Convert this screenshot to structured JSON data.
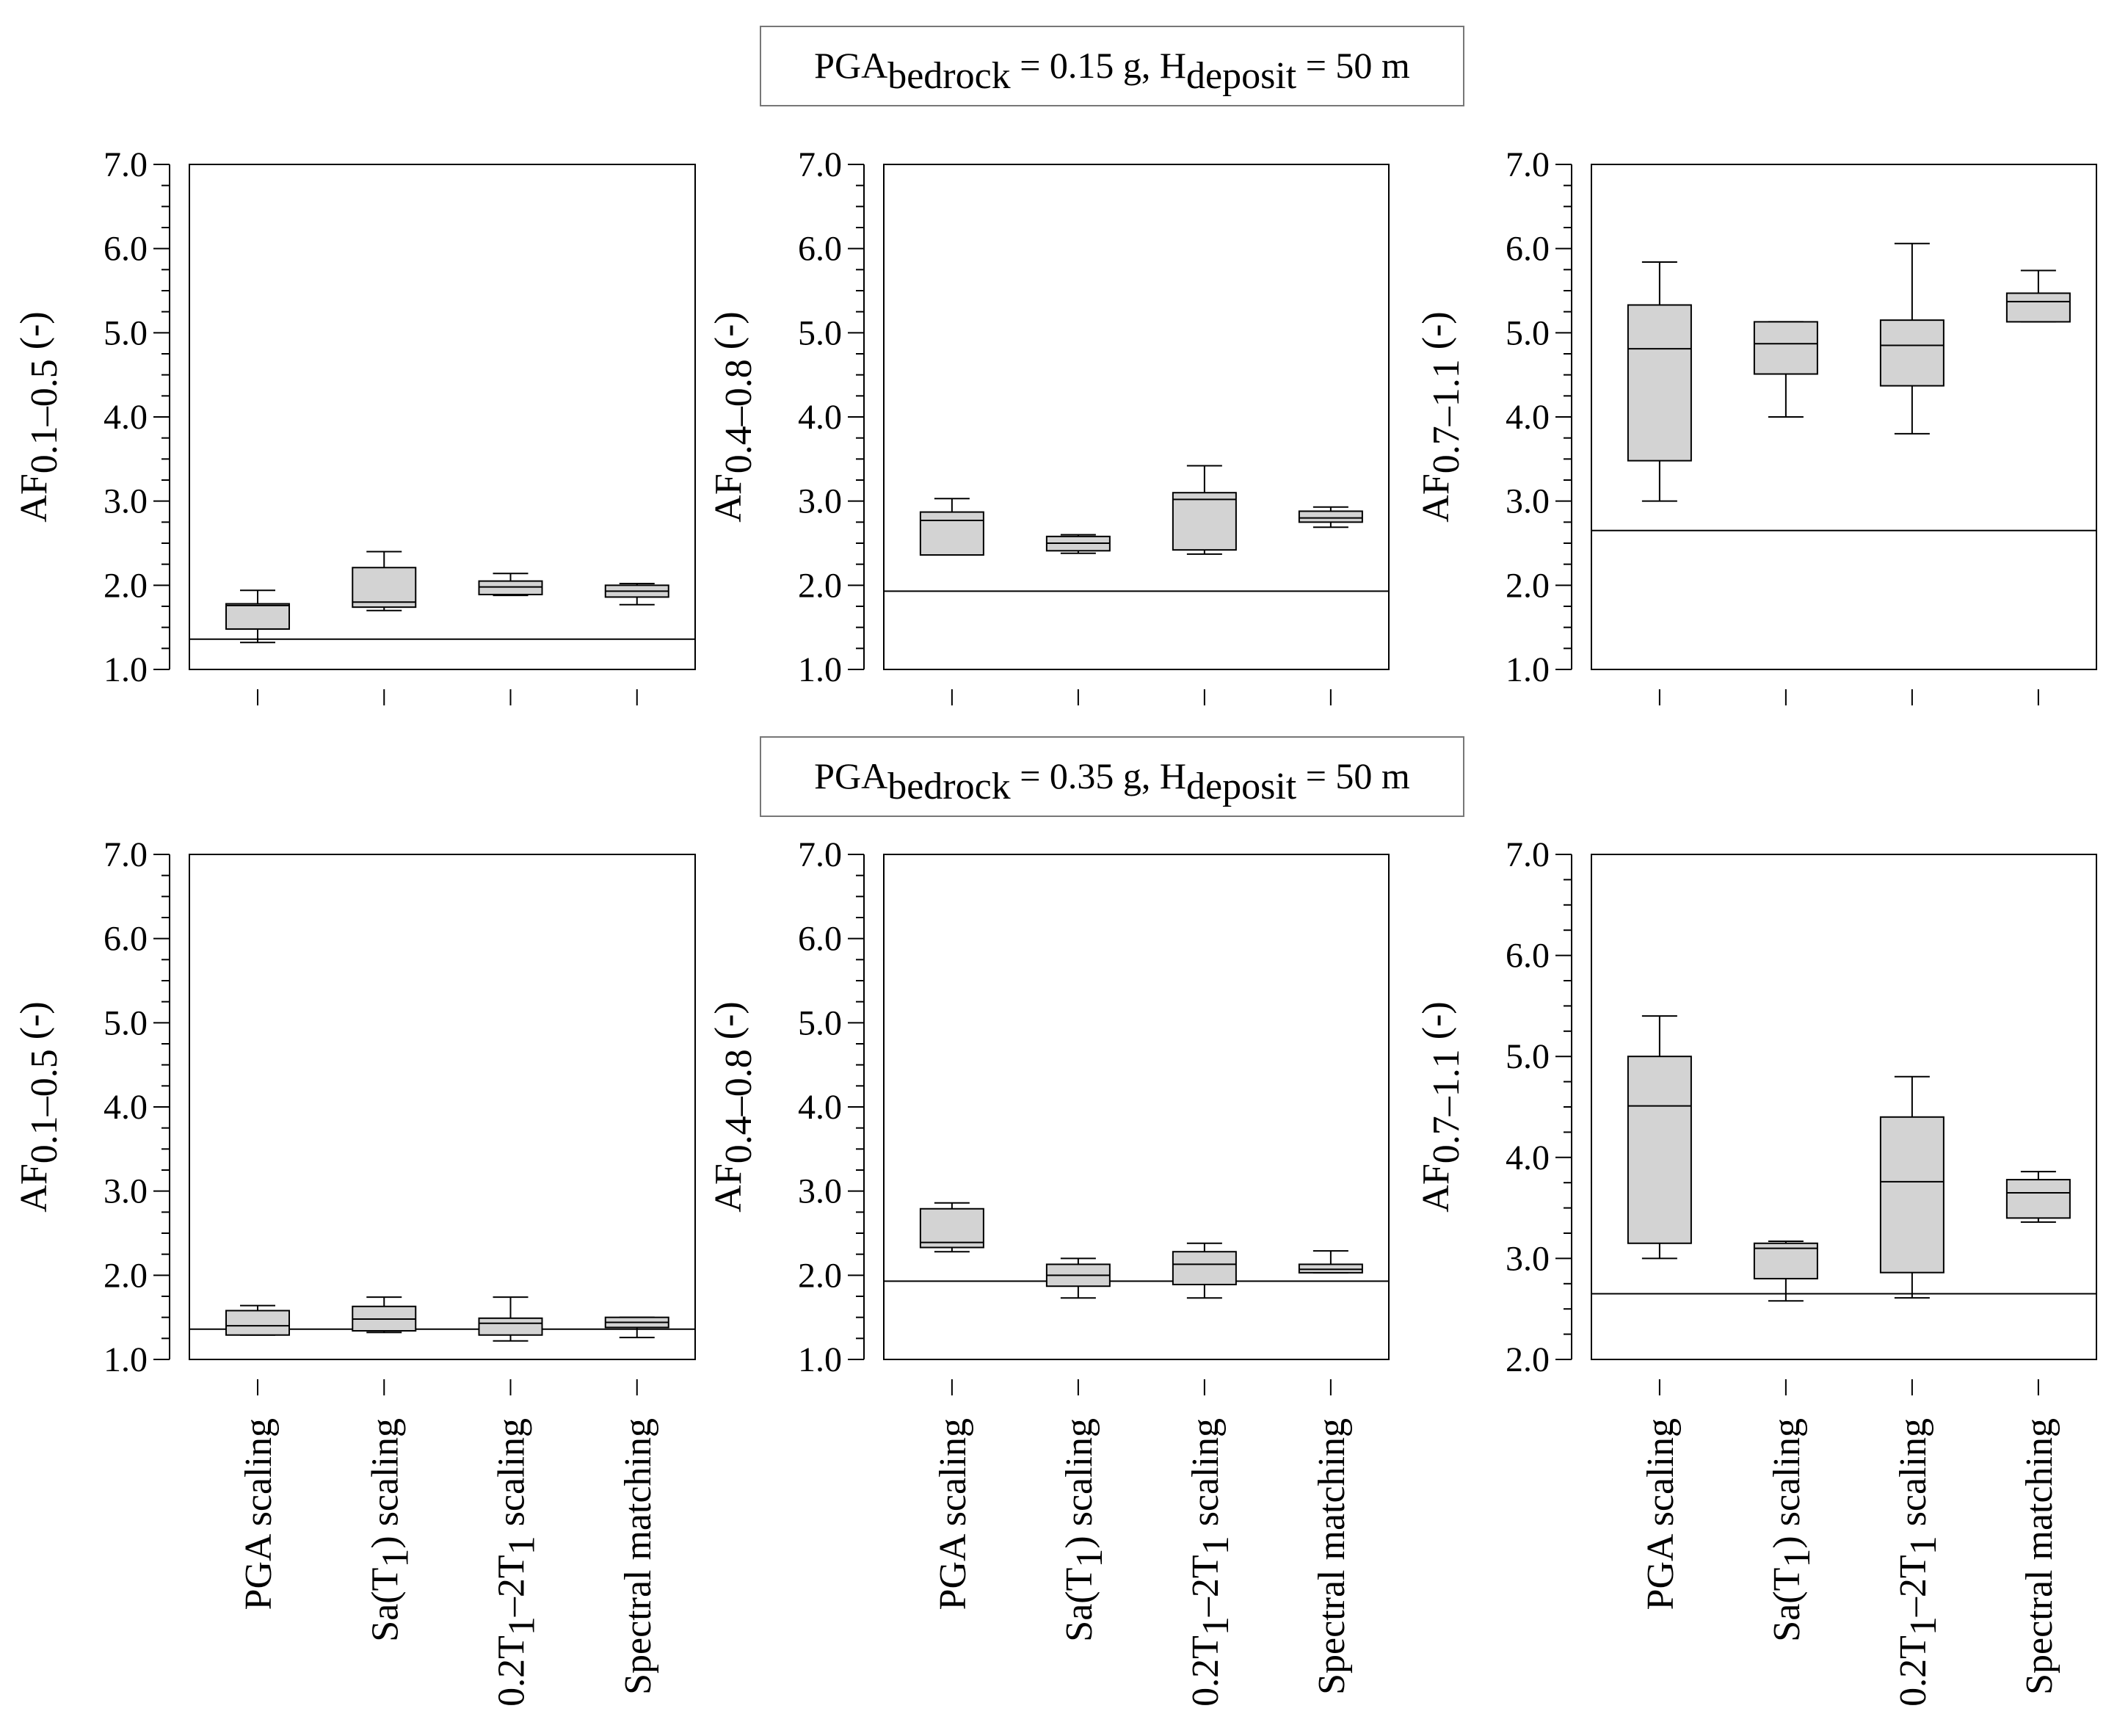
{
  "figure": {
    "row_titles": [
      {
        "base": "PGA",
        "sub1": "bedrock",
        "mid": " = 0.15 g, H",
        "sub2": "deposit",
        "end": " = 50 m"
      },
      {
        "base": "PGA",
        "sub1": "bedrock",
        "mid": " = 0.35 g, H",
        "sub2": "deposit",
        "end": " = 50 m"
      }
    ],
    "ylabels": [
      {
        "base": "AF",
        "sub": "0.1–0.5",
        "unit": " (-)"
      },
      {
        "base": "AF",
        "sub": "0.4–0.8",
        "unit": " (-)"
      },
      {
        "base": "AF",
        "sub": "0.7–1.1",
        "unit": " (-)"
      }
    ],
    "categories": [
      [
        {
          "t": "PGA scaling"
        }
      ],
      [
        {
          "t": "Sa(T"
        },
        {
          "t": "1",
          "sub": true
        },
        {
          "t": ") scaling"
        }
      ],
      [
        {
          "t": "0.2T"
        },
        {
          "t": "1",
          "sub": true
        },
        {
          "t": "–2T"
        },
        {
          "t": "1",
          "sub": true
        },
        {
          "t": " scaling"
        }
      ],
      [
        {
          "t": "Spectral matching"
        }
      ]
    ]
  },
  "chart_data": [
    {
      "type": "box",
      "ylabel": "AF0.1-0.5 (-)",
      "ylim": [
        1.0,
        7.0
      ],
      "yticks": [
        "1.0",
        "2.0",
        "3.0",
        "4.0",
        "5.0",
        "6.0",
        "7.0"
      ],
      "reference_line": 1.36,
      "show_category_labels": false,
      "boxes": [
        {
          "category": "PGA scaling",
          "whisker_low": 1.32,
          "q1": 1.48,
          "median": 1.76,
          "q3": 1.78,
          "whisker_high": 1.94
        },
        {
          "category": "Sa(T1) scaling",
          "whisker_low": 1.7,
          "q1": 1.74,
          "median": 1.8,
          "q3": 2.21,
          "whisker_high": 2.4
        },
        {
          "category": "0.2T1-2T1 scaling",
          "whisker_low": 1.88,
          "q1": 1.89,
          "median": 1.98,
          "q3": 2.05,
          "whisker_high": 2.14
        },
        {
          "category": "Spectral matching",
          "whisker_low": 1.77,
          "q1": 1.86,
          "median": 1.93,
          "q3": 2.0,
          "whisker_high": 2.02
        }
      ]
    },
    {
      "type": "box",
      "ylabel": "AF0.4-0.8 (-)",
      "ylim": [
        1.0,
        7.0
      ],
      "yticks": [
        "1.0",
        "2.0",
        "3.0",
        "4.0",
        "5.0",
        "6.0",
        "7.0"
      ],
      "reference_line": 1.93,
      "show_category_labels": false,
      "boxes": [
        {
          "category": "PGA scaling",
          "whisker_low": 2.36,
          "q1": 2.36,
          "median": 2.77,
          "q3": 2.87,
          "whisker_high": 3.03
        },
        {
          "category": "Sa(T1) scaling",
          "whisker_low": 2.38,
          "q1": 2.41,
          "median": 2.5,
          "q3": 2.58,
          "whisker_high": 2.6
        },
        {
          "category": "0.2T1-2T1 scaling",
          "whisker_low": 2.37,
          "q1": 2.42,
          "median": 3.02,
          "q3": 3.1,
          "whisker_high": 3.42
        },
        {
          "category": "Spectral matching",
          "whisker_low": 2.69,
          "q1": 2.75,
          "median": 2.8,
          "q3": 2.88,
          "whisker_high": 2.93
        }
      ]
    },
    {
      "type": "box",
      "ylabel": "AF0.7-1.1 (-)",
      "ylim": [
        1.0,
        7.0
      ],
      "yticks": [
        "1.0",
        "2.0",
        "3.0",
        "4.0",
        "5.0",
        "6.0",
        "7.0"
      ],
      "reference_line": 2.65,
      "show_category_labels": false,
      "boxes": [
        {
          "category": "PGA scaling",
          "whisker_low": 3.0,
          "q1": 3.48,
          "median": 4.81,
          "q3": 5.33,
          "whisker_high": 5.84
        },
        {
          "category": "Sa(T1) scaling",
          "whisker_low": 4.0,
          "q1": 4.51,
          "median": 4.87,
          "q3": 5.13,
          "whisker_high": 5.13
        },
        {
          "category": "0.2T1-2T1 scaling",
          "whisker_low": 3.8,
          "q1": 4.37,
          "median": 4.85,
          "q3": 5.15,
          "whisker_high": 6.06
        },
        {
          "category": "Spectral matching",
          "whisker_low": 5.13,
          "q1": 5.13,
          "median": 5.37,
          "q3": 5.47,
          "whisker_high": 5.74
        }
      ]
    },
    {
      "type": "box",
      "ylabel": "AF0.1-0.5 (-)",
      "ylim": [
        1.0,
        7.0
      ],
      "yticks": [
        "1.0",
        "2.0",
        "3.0",
        "4.0",
        "5.0",
        "6.0",
        "7.0"
      ],
      "reference_line": 1.36,
      "show_category_labels": true,
      "boxes": [
        {
          "category": "PGA scaling",
          "whisker_low": 1.29,
          "q1": 1.29,
          "median": 1.4,
          "q3": 1.58,
          "whisker_high": 1.64
        },
        {
          "category": "Sa(T1) scaling",
          "whisker_low": 1.32,
          "q1": 1.34,
          "median": 1.48,
          "q3": 1.63,
          "whisker_high": 1.74
        },
        {
          "category": "0.2T1-2T1 scaling",
          "whisker_low": 1.22,
          "q1": 1.29,
          "median": 1.43,
          "q3": 1.49,
          "whisker_high": 1.74
        },
        {
          "category": "Spectral matching",
          "whisker_low": 1.26,
          "q1": 1.38,
          "median": 1.44,
          "q3": 1.5,
          "whisker_high": 1.5
        }
      ]
    },
    {
      "type": "box",
      "ylabel": "AF0.4-0.8 (-)",
      "ylim": [
        1.0,
        7.0
      ],
      "yticks": [
        "1.0",
        "2.0",
        "3.0",
        "4.0",
        "5.0",
        "6.0",
        "7.0"
      ],
      "reference_line": 1.93,
      "show_category_labels": true,
      "boxes": [
        {
          "category": "PGA scaling",
          "whisker_low": 2.28,
          "q1": 2.33,
          "median": 2.39,
          "q3": 2.79,
          "whisker_high": 2.86
        },
        {
          "category": "Sa(T1) scaling",
          "whisker_low": 1.73,
          "q1": 1.87,
          "median": 2.0,
          "q3": 2.13,
          "whisker_high": 2.2
        },
        {
          "category": "0.2T1-2T1 scaling",
          "whisker_low": 1.73,
          "q1": 1.89,
          "median": 2.13,
          "q3": 2.28,
          "whisker_high": 2.38
        },
        {
          "category": "Spectral matching",
          "whisker_low": 2.03,
          "q1": 2.03,
          "median": 2.07,
          "q3": 2.13,
          "whisker_high": 2.29
        }
      ]
    },
    {
      "type": "box",
      "ylabel": "AF0.7-1.1 (-)",
      "ylim": [
        2.0,
        7.0
      ],
      "yticks": [
        "2.0",
        "3.0",
        "4.0",
        "5.0",
        "6.0",
        "7.0"
      ],
      "reference_line": 2.65,
      "show_category_labels": true,
      "boxes": [
        {
          "category": "PGA scaling",
          "whisker_low": 3.0,
          "q1": 3.15,
          "median": 4.51,
          "q3": 5.0,
          "whisker_high": 5.4
        },
        {
          "category": "Sa(T1) scaling",
          "whisker_low": 2.58,
          "q1": 2.8,
          "median": 3.1,
          "q3": 3.15,
          "whisker_high": 3.17
        },
        {
          "category": "0.2T1-2T1 scaling",
          "whisker_low": 2.61,
          "q1": 2.86,
          "median": 3.76,
          "q3": 4.4,
          "whisker_high": 4.8
        },
        {
          "category": "Spectral matching",
          "whisker_low": 3.36,
          "q1": 3.4,
          "median": 3.65,
          "q3": 3.78,
          "whisker_high": 3.86
        }
      ]
    }
  ]
}
